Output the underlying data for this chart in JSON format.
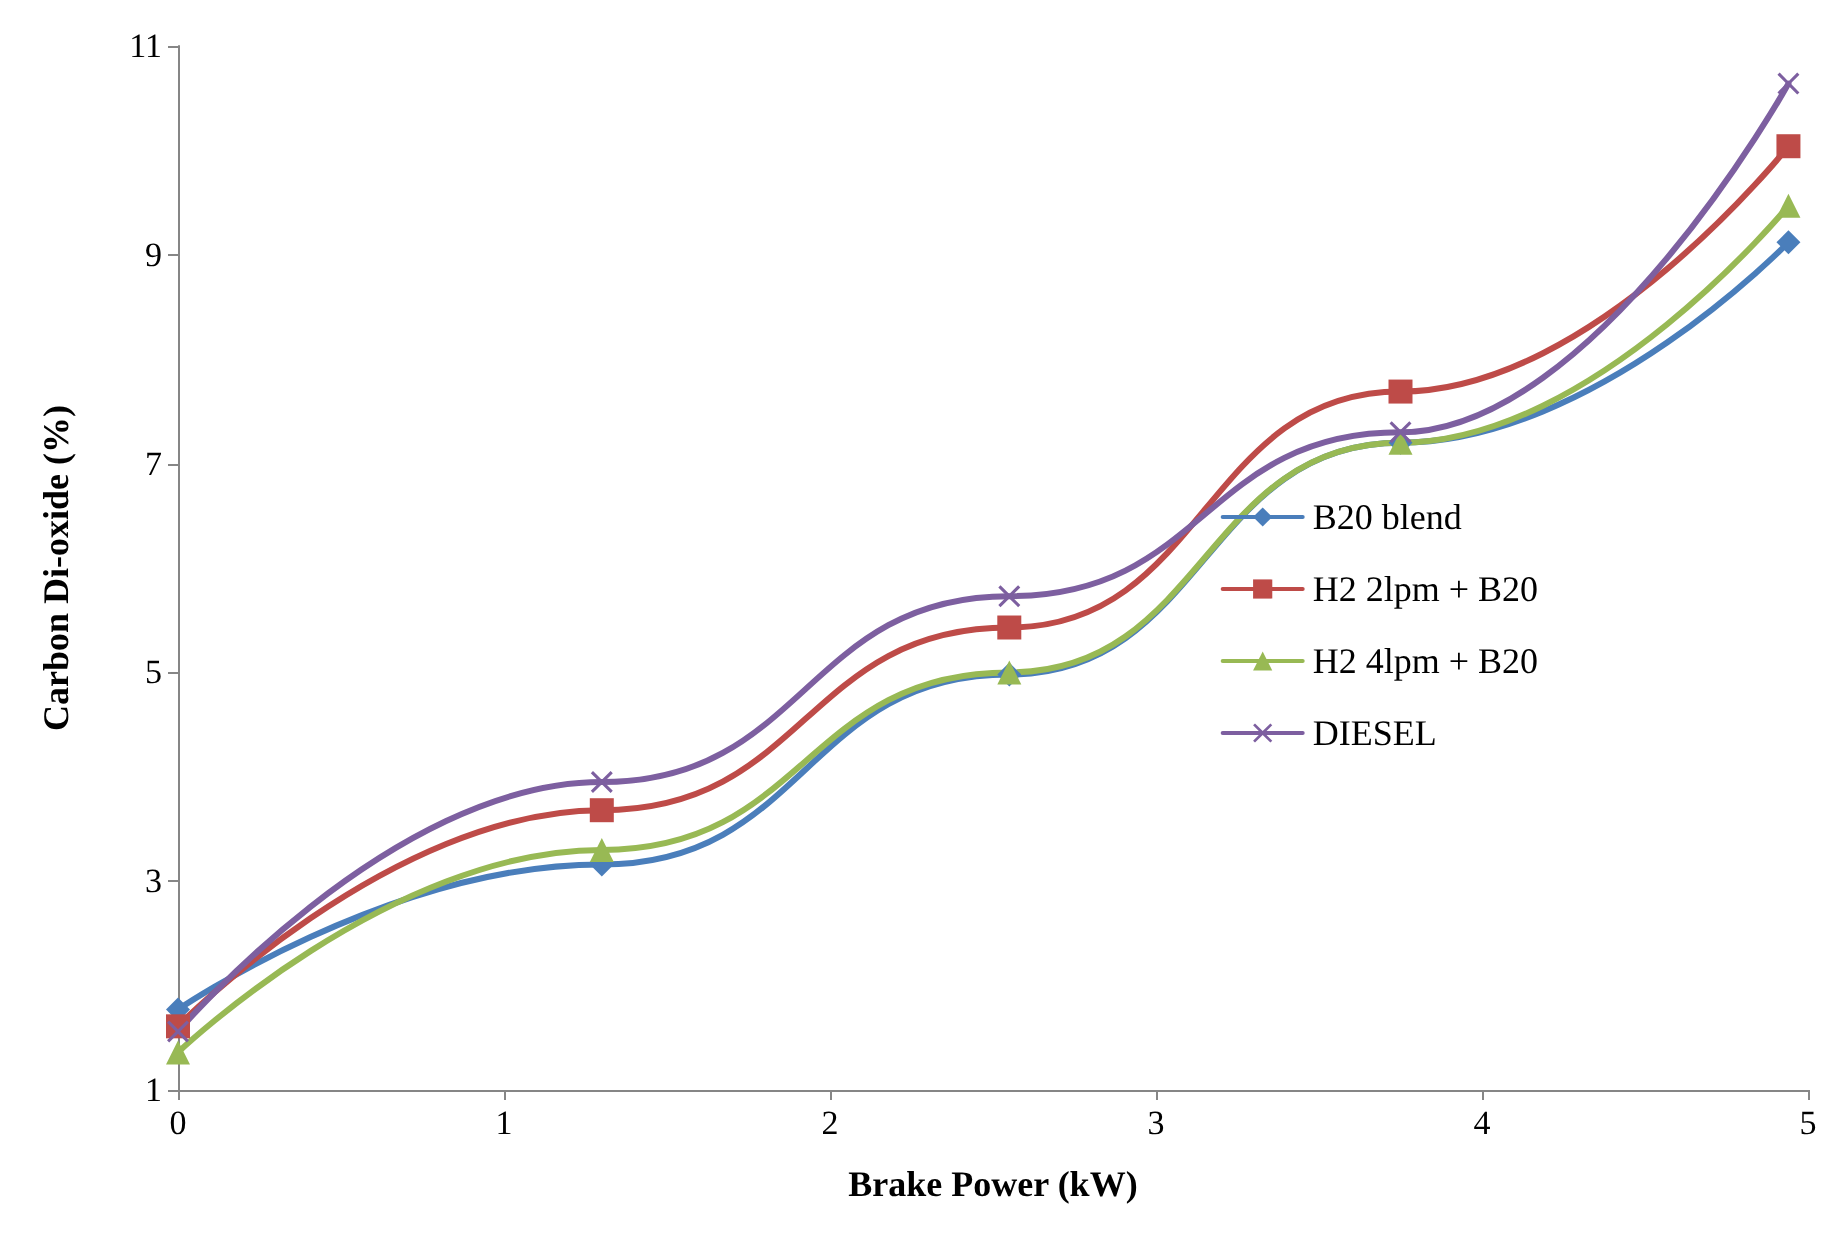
{
  "chart_data": {
    "type": "line",
    "xlabel": "Brake Power (kW)",
    "ylabel": "Carbon Di-oxide (%)",
    "x": [
      0,
      1.3,
      2.55,
      3.75,
      4.94
    ],
    "series": [
      {
        "name": "B20 blend",
        "color": "#4a7ebb",
        "marker": "diamond",
        "values": [
          1.77,
          3.16,
          4.98,
          7.2,
          9.12
        ]
      },
      {
        "name": "H2 2lpm + B20",
        "color": "#be4b48",
        "marker": "square",
        "values": [
          1.61,
          3.68,
          5.43,
          7.69,
          10.04
        ]
      },
      {
        "name": "H2 4lpm + B20",
        "color": "#98b954",
        "marker": "triangle",
        "values": [
          1.36,
          3.3,
          5.0,
          7.2,
          9.47
        ]
      },
      {
        "name": "DIESEL",
        "color": "#7d5fa0",
        "marker": "cross",
        "values": [
          1.56,
          3.95,
          5.73,
          7.3,
          10.64
        ]
      }
    ],
    "xlim": [
      0,
      5
    ],
    "xticks": [
      0,
      1,
      2,
      3,
      4,
      5
    ],
    "ylim": [
      1,
      11
    ],
    "yticks": [
      1,
      3,
      5,
      7,
      9,
      11
    ],
    "grid": false,
    "legend": "right",
    "line_style": "solid"
  }
}
